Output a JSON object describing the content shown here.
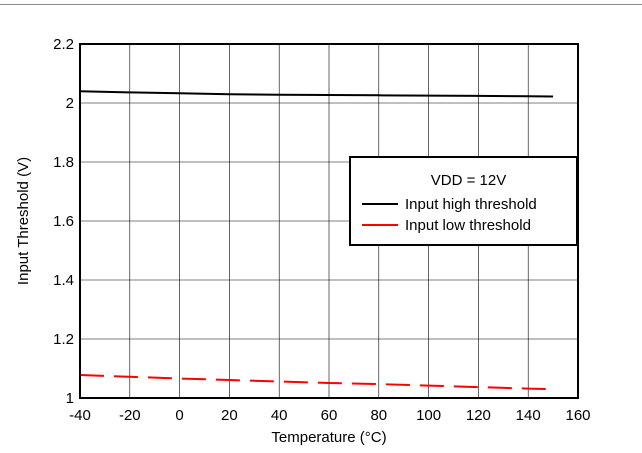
{
  "chart_data": {
    "type": "line",
    "title": "",
    "xlabel": "Temperature (°C)",
    "ylabel": "Input Threshold (V)",
    "xlim": [
      -40,
      160
    ],
    "ylim": [
      1,
      2.2
    ],
    "xticks": [
      -40,
      -20,
      0,
      20,
      40,
      60,
      80,
      100,
      120,
      140,
      160
    ],
    "yticks": [
      1,
      1.2,
      1.4,
      1.6,
      1.8,
      2,
      2.2
    ],
    "xtick_labels": [
      "-40",
      "-20",
      "0",
      "20",
      "40",
      "60",
      "80",
      "100",
      "120",
      "140",
      "160"
    ],
    "ytick_labels": [
      "1",
      "1.2",
      "1.4",
      "1.6",
      "1.8",
      "2",
      "2.2"
    ],
    "grid": true,
    "legend": {
      "placement": "right",
      "title": "VDD = 12V",
      "entries": [
        "Input high threshold",
        "Input low threshold"
      ]
    },
    "series": [
      {
        "name": "Input high threshold",
        "color": "#000000",
        "style": "solid",
        "x": [
          -40,
          -20,
          0,
          20,
          40,
          60,
          80,
          100,
          120,
          140,
          150
        ],
        "y": [
          2.04,
          2.036,
          2.033,
          2.03,
          2.028,
          2.027,
          2.026,
          2.025,
          2.024,
          2.023,
          2.022
        ]
      },
      {
        "name": "Input low threshold",
        "color": "#ff0000",
        "style": "dashed",
        "x": [
          -40,
          -20,
          0,
          20,
          40,
          60,
          80,
          100,
          120,
          140,
          150
        ],
        "y": [
          1.078,
          1.072,
          1.066,
          1.061,
          1.056,
          1.051,
          1.047,
          1.042,
          1.037,
          1.032,
          1.03
        ]
      }
    ]
  }
}
